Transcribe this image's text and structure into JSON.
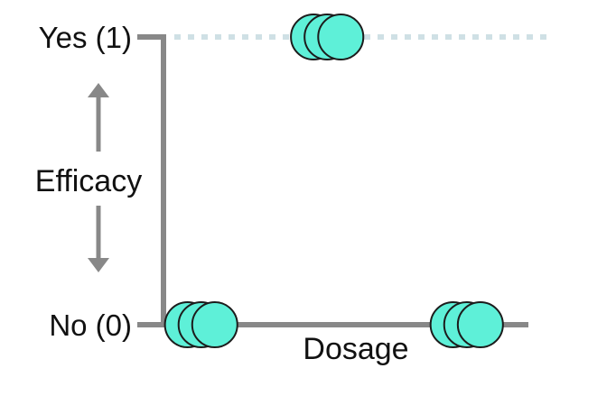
{
  "chart_data": {
    "type": "scatter",
    "y_ticks": [
      {
        "value": 1,
        "label": "Yes (1)"
      },
      {
        "value": 0,
        "label": "No (0)"
      }
    ],
    "ylabel": "Efficacy",
    "xlabel": "Dosage",
    "x_range": [
      0,
      10
    ],
    "y_range": [
      0,
      1
    ],
    "grid": false,
    "reference_line": {
      "y": 1,
      "style": "dotted"
    },
    "points": [
      {
        "x": 0.6,
        "y": 0
      },
      {
        "x": 1.0,
        "y": 0
      },
      {
        "x": 1.4,
        "y": 0
      },
      {
        "x": 4.3,
        "y": 1
      },
      {
        "x": 4.7,
        "y": 1
      },
      {
        "x": 5.1,
        "y": 1
      },
      {
        "x": 8.4,
        "y": 0
      },
      {
        "x": 8.8,
        "y": 0
      },
      {
        "x": 9.2,
        "y": 0
      }
    ],
    "colors": {
      "axis": "#888888",
      "point_fill": "#5ef0d8",
      "point_stroke": "#1c1c1c",
      "reference": "#cfe0e5",
      "arrow": "#888888"
    }
  }
}
